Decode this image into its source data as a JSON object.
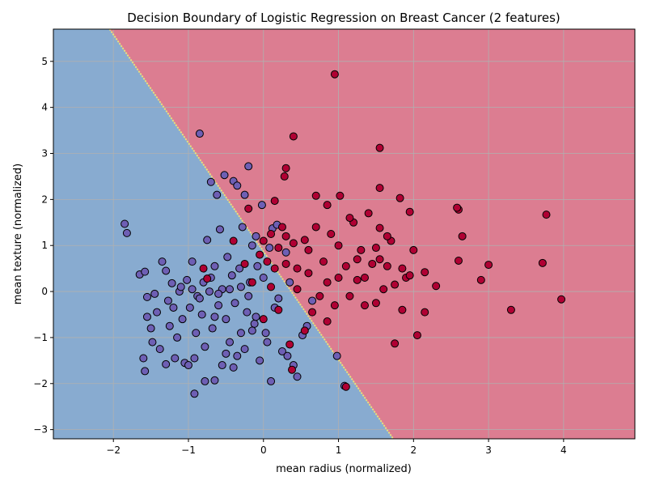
{
  "chart_data": {
    "type": "scatter",
    "title": "Decision Boundary of Logistic Regression on Breast Cancer (2 features)",
    "xlabel": "mean radius (normalized)",
    "ylabel": "mean texture (normalized)",
    "xlim": [
      -2.8,
      4.95
    ],
    "ylim": [
      -3.2,
      5.7
    ],
    "xticks": [
      -2,
      -1,
      0,
      1,
      2,
      3,
      4
    ],
    "yticks": [
      -3,
      -2,
      -1,
      0,
      1,
      2,
      3,
      4,
      5
    ],
    "grid": true,
    "boundary": {
      "line": [
        [
          -2.05,
          5.7
        ],
        [
          1.73,
          -3.2
        ]
      ],
      "region_colors": {
        "blue": "#88abd0",
        "red": "#dc7d91"
      }
    },
    "colors": {
      "class_blue": "#6e5fb4",
      "class_red": "#b00033",
      "point_edge": "#000000",
      "grid": "#b0b0b0",
      "boundary_line": "#e8e27a"
    },
    "series": [
      {
        "values": [
          [
            -1.85,
            1.47
          ],
          [
            -1.82,
            1.27
          ],
          [
            -1.65,
            0.37
          ],
          [
            -1.58,
            0.43
          ],
          [
            -1.55,
            -0.12
          ],
          [
            -1.55,
            -0.55
          ],
          [
            -1.5,
            -0.8
          ],
          [
            -1.45,
            -0.05
          ],
          [
            -1.42,
            -0.45
          ],
          [
            -1.38,
            -1.25
          ],
          [
            -1.35,
            0.65
          ],
          [
            -1.3,
            0.45
          ],
          [
            -1.27,
            -0.2
          ],
          [
            -1.25,
            -0.75
          ],
          [
            -1.22,
            0.18
          ],
          [
            -1.2,
            -0.35
          ],
          [
            -1.15,
            -1.0
          ],
          [
            -1.12,
            0.0
          ],
          [
            -1.08,
            -0.6
          ],
          [
            -1.05,
            -1.55
          ],
          [
            -1.02,
            0.25
          ],
          [
            -0.98,
            -0.35
          ],
          [
            -0.95,
            0.65
          ],
          [
            -0.92,
            -2.22
          ],
          [
            -0.9,
            -0.9
          ],
          [
            -0.88,
            -0.1
          ],
          [
            -0.85,
            3.43
          ],
          [
            -0.82,
            -0.5
          ],
          [
            -0.8,
            0.2
          ],
          [
            -0.78,
            -1.2
          ],
          [
            -0.75,
            1.12
          ],
          [
            -0.72,
            0.0
          ],
          [
            -0.7,
            2.38
          ],
          [
            -0.68,
            -0.8
          ],
          [
            -0.65,
            0.55
          ],
          [
            -0.62,
            2.1
          ],
          [
            -0.6,
            -0.3
          ],
          [
            -0.58,
            1.35
          ],
          [
            -0.55,
            0.05
          ],
          [
            -0.52,
            2.53
          ],
          [
            -0.5,
            -0.6
          ],
          [
            -0.48,
            0.75
          ],
          [
            -0.45,
            -1.1
          ],
          [
            -0.42,
            0.35
          ],
          [
            -0.4,
            2.4
          ],
          [
            -0.38,
            -0.25
          ],
          [
            -0.35,
            2.3
          ],
          [
            -0.32,
            0.5
          ],
          [
            -0.3,
            -0.9
          ],
          [
            -0.28,
            1.4
          ],
          [
            -0.25,
            2.1
          ],
          [
            -0.22,
            -0.45
          ],
          [
            -0.2,
            2.72
          ],
          [
            -0.18,
            0.2
          ],
          [
            -0.15,
            1.0
          ],
          [
            -0.12,
            -0.7
          ],
          [
            -0.1,
            1.2
          ],
          [
            -0.08,
            0.55
          ],
          [
            -0.05,
            -1.5
          ],
          [
            -0.02,
            1.88
          ],
          [
            0.0,
            0.3
          ],
          [
            0.03,
            -0.9
          ],
          [
            0.05,
            -1.1
          ],
          [
            0.08,
            0.95
          ],
          [
            0.1,
            -1.95
          ],
          [
            0.12,
            1.37
          ],
          [
            0.15,
            -0.35
          ],
          [
            0.18,
            1.45
          ],
          [
            0.2,
            -0.15
          ],
          [
            0.25,
            -1.3
          ],
          [
            0.3,
            0.85
          ],
          [
            0.32,
            -1.4
          ],
          [
            0.35,
            0.2
          ],
          [
            0.4,
            -1.6
          ],
          [
            0.45,
            -1.85
          ],
          [
            0.52,
            -0.95
          ],
          [
            0.58,
            -0.75
          ],
          [
            0.65,
            -0.2
          ],
          [
            0.98,
            -1.4
          ],
          [
            1.08,
            -2.05
          ],
          [
            -1.6,
            -1.45
          ],
          [
            -1.58,
            -1.73
          ],
          [
            -1.48,
            -1.1
          ],
          [
            -1.3,
            -1.58
          ],
          [
            -1.18,
            -1.45
          ],
          [
            -1.0,
            -1.6
          ],
          [
            -0.92,
            -1.45
          ],
          [
            -0.78,
            -1.95
          ],
          [
            -0.65,
            -1.93
          ],
          [
            -0.55,
            -1.6
          ],
          [
            -0.4,
            -1.65
          ],
          [
            -0.5,
            -1.35
          ],
          [
            -0.25,
            -1.25
          ],
          [
            -0.35,
            -1.4
          ],
          [
            -0.15,
            -0.85
          ],
          [
            -0.65,
            -0.55
          ],
          [
            -0.45,
            0.05
          ],
          [
            -0.3,
            0.1
          ],
          [
            -0.2,
            -0.1
          ],
          [
            -0.1,
            -0.55
          ],
          [
            -0.95,
            0.05
          ],
          [
            -0.85,
            -0.15
          ],
          [
            -0.7,
            0.3
          ],
          [
            -0.6,
            -0.05
          ],
          [
            -1.1,
            0.1
          ]
        ]
      },
      {
        "values": [
          [
            0.95,
            4.72
          ],
          [
            0.4,
            3.37
          ],
          [
            1.55,
            3.12
          ],
          [
            0.3,
            2.68
          ],
          [
            0.28,
            2.5
          ],
          [
            1.55,
            2.25
          ],
          [
            0.7,
            2.08
          ],
          [
            1.02,
            2.08
          ],
          [
            1.82,
            2.03
          ],
          [
            0.15,
            1.97
          ],
          [
            0.85,
            1.88
          ],
          [
            1.2,
            1.5
          ],
          [
            0.55,
            1.12
          ],
          [
            1.55,
            1.38
          ],
          [
            2.6,
            1.78
          ],
          [
            3.77,
            1.67
          ],
          [
            2.65,
            1.2
          ],
          [
            1.95,
            1.73
          ],
          [
            2.3,
            0.12
          ],
          [
            3.0,
            0.58
          ],
          [
            3.3,
            -0.4
          ],
          [
            3.97,
            -0.17
          ],
          [
            2.9,
            0.25
          ],
          [
            2.6,
            0.67
          ],
          [
            3.72,
            0.62
          ],
          [
            2.15,
            -0.45
          ],
          [
            2.05,
            -0.95
          ],
          [
            1.75,
            -1.13
          ],
          [
            1.1,
            -2.07
          ],
          [
            0.38,
            -1.7
          ],
          [
            0.35,
            -1.15
          ],
          [
            0.55,
            -0.85
          ],
          [
            0.75,
            -0.1
          ],
          [
            0.85,
            0.2
          ],
          [
            1.1,
            0.55
          ],
          [
            1.25,
            0.25
          ],
          [
            1.35,
            -0.3
          ],
          [
            1.45,
            0.6
          ],
          [
            1.6,
            0.05
          ],
          [
            1.7,
            1.1
          ],
          [
            1.85,
            0.5
          ],
          [
            2.0,
            0.9
          ],
          [
            1.9,
            0.3
          ],
          [
            1.3,
            0.9
          ],
          [
            1.0,
            1.0
          ],
          [
            0.8,
            0.65
          ],
          [
            0.6,
            0.4
          ],
          [
            0.45,
            0.05
          ],
          [
            0.3,
            0.6
          ],
          [
            0.2,
            0.95
          ],
          [
            0.1,
            1.25
          ],
          [
            0.0,
            1.1
          ],
          [
            0.05,
            0.65
          ],
          [
            0.25,
            1.4
          ],
          [
            0.4,
            1.05
          ],
          [
            0.7,
            1.4
          ],
          [
            0.9,
            1.25
          ],
          [
            1.15,
            1.6
          ],
          [
            1.4,
            1.7
          ],
          [
            1.65,
            1.2
          ],
          [
            1.35,
            0.3
          ],
          [
            1.15,
            -0.1
          ],
          [
            0.95,
            -0.3
          ],
          [
            0.85,
            -0.65
          ],
          [
            0.65,
            -0.45
          ],
          [
            1.5,
            -0.25
          ],
          [
            1.75,
            0.15
          ],
          [
            1.85,
            -0.4
          ],
          [
            2.15,
            0.42
          ],
          [
            1.55,
            0.7
          ],
          [
            -0.2,
            1.8
          ],
          [
            -0.8,
            0.5
          ],
          [
            -0.75,
            0.28
          ],
          [
            -0.4,
            1.1
          ],
          [
            -0.25,
            0.6
          ],
          [
            -0.15,
            0.2
          ],
          [
            0.1,
            0.1
          ],
          [
            0.2,
            -0.4
          ],
          [
            0.0,
            -0.6
          ],
          [
            -0.05,
            0.8
          ],
          [
            0.45,
            0.5
          ],
          [
            0.6,
            0.9
          ],
          [
            1.0,
            0.3
          ],
          [
            1.25,
            0.7
          ],
          [
            1.65,
            0.55
          ],
          [
            2.58,
            1.82
          ],
          [
            1.95,
            0.35
          ],
          [
            1.5,
            0.95
          ],
          [
            0.3,
            1.2
          ],
          [
            0.15,
            0.5
          ]
        ]
      }
    ]
  }
}
